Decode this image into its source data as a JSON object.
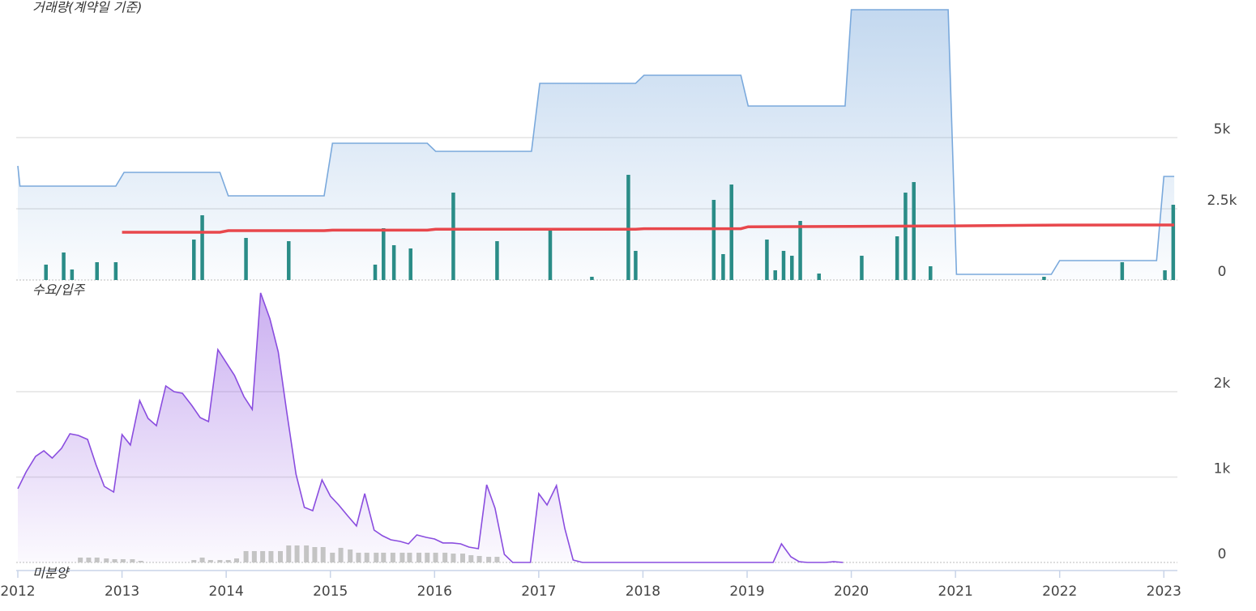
{
  "chart_data": [
    {
      "type": "combo",
      "title": "거래량(계약일 기준)",
      "xlim": [
        2012,
        2023.13
      ],
      "ylim": [
        0,
        9830
      ],
      "yticks": [
        0,
        {
          "value": 2500,
          "label": "2.5k"
        },
        {
          "value": 5000,
          "label": "5k"
        }
      ],
      "grid": true,
      "series": [
        {
          "type": "area",
          "color": "#7aa9dc",
          "x": [
            2012.0,
            2012.02,
            2012.94,
            2013.02,
            2013.94,
            2014.02,
            2014.94,
            2015.02,
            2015.93,
            2016.01,
            2016.93,
            2017.01,
            2017.93,
            2018.01,
            2018.94,
            2019.01,
            2019.94,
            2020.0,
            2020.93,
            2021.01,
            2021.92,
            2022.0,
            2022.93,
            2023.0,
            2023.1
          ],
          "values": [
            4006,
            3295,
            3295,
            3778,
            3778,
            2955,
            2955,
            4801,
            4801,
            4517,
            4517,
            6903,
            6903,
            7188,
            7188,
            6108,
            6108,
            9489,
            9489,
            199,
            199,
            682,
            682,
            3636,
            3636
          ]
        },
        {
          "type": "bar",
          "color": "#2a8c87",
          "x": [
            2012.27,
            2012.44,
            2012.52,
            2012.76,
            2012.94,
            2013.69,
            2013.77,
            2014.19,
            2014.6,
            2015.43,
            2015.51,
            2015.61,
            2015.77,
            2016.18,
            2016.6,
            2017.11,
            2017.51,
            2017.86,
            2017.93,
            2018.68,
            2018.77,
            2018.85,
            2019.19,
            2019.27,
            2019.35,
            2019.43,
            2019.51,
            2019.69,
            2020.1,
            2020.44,
            2020.52,
            2020.6,
            2020.76,
            2021.85,
            2022.6,
            2023.01,
            2023.09
          ],
          "values": [
            540,
            966,
            369,
            625,
            625,
            1420,
            2273,
            1477,
            1364,
            540,
            1818,
            1222,
            1108,
            3068,
            1364,
            1818,
            114,
            3693,
            1023,
            2813,
            909,
            3352,
            1420,
            341,
            1023,
            852,
            2074,
            227,
            852,
            1534,
            3068,
            3438,
            483,
            114,
            625,
            341,
            2642
          ]
        },
        {
          "type": "line",
          "color": "#e8474c",
          "x": [
            2013.0,
            2013.94,
            2014.02,
            2014.94,
            2015.02,
            2015.93,
            2016.01,
            2017.93,
            2018.01,
            2018.94,
            2019.01,
            2020.0,
            2021.0,
            2022.0,
            2023.1
          ],
          "values": [
            1676,
            1676,
            1733,
            1733,
            1750,
            1750,
            1780,
            1780,
            1800,
            1800,
            1870,
            1880,
            1900,
            1930,
            1932
          ]
        }
      ]
    },
    {
      "type": "combo",
      "title": "수요/입주",
      "xlim": [
        2012,
        2023.13
      ],
      "ylim": [
        0,
        3270
      ],
      "xticks": [
        2012,
        2013,
        2014,
        2015,
        2016,
        2017,
        2018,
        2019,
        2020,
        2021,
        2022,
        2023
      ],
      "yticks": [
        0,
        {
          "value": 1000,
          "label": "1k"
        },
        {
          "value": 2000,
          "label": "2k"
        }
      ],
      "grid": true,
      "series": [
        {
          "type": "area",
          "color": "#8a4ddf",
          "x": [
            2012.0,
            2012.08,
            2012.17,
            2012.25,
            2012.33,
            2012.42,
            2012.5,
            2012.58,
            2012.67,
            2012.75,
            2012.83,
            2012.92,
            2013.0,
            2013.08,
            2013.17,
            2013.25,
            2013.33,
            2013.42,
            2013.5,
            2013.58,
            2013.67,
            2013.75,
            2013.83,
            2013.92,
            2014.0,
            2014.08,
            2014.17,
            2014.25,
            2014.33,
            2014.42,
            2014.5,
            2014.58,
            2014.67,
            2014.75,
            2014.83,
            2014.92,
            2015.0,
            2015.08,
            2015.17,
            2015.25,
            2015.33,
            2015.42,
            2015.5,
            2015.58,
            2015.67,
            2015.75,
            2015.83,
            2015.92,
            2016.0,
            2016.08,
            2016.17,
            2016.25,
            2016.33,
            2016.42,
            2016.5,
            2016.58,
            2016.67,
            2016.75,
            2016.83,
            2016.92,
            2017.0,
            2017.08,
            2017.17,
            2017.25,
            2017.33,
            2017.42,
            2019.17,
            2019.25,
            2019.33,
            2019.42,
            2019.5,
            2019.58,
            2019.67,
            2019.75,
            2019.83,
            2019.92
          ],
          "values": [
            863,
            1062,
            1242,
            1308,
            1223,
            1337,
            1507,
            1488,
            1441,
            1147,
            891,
            825,
            1498,
            1375,
            1896,
            1687,
            1602,
            2067,
            2000,
            1981,
            1839,
            1697,
            1650,
            2493,
            2342,
            2190,
            1943,
            1792,
            3157,
            2853,
            2465,
            1773,
            1033,
            645,
            607,
            967,
            777,
            673,
            540,
            427,
            806,
            379,
            313,
            265,
            246,
            218,
            322,
            294,
            275,
            228,
            228,
            218,
            180,
            161,
            910,
            635,
            95,
            0,
            0,
            0,
            806,
            673,
            900,
            398,
            28,
            0,
            0,
            0,
            218,
            66,
            9,
            0,
            0,
            0,
            9,
            0
          ]
        },
        {
          "type": "bar",
          "name": "미분양",
          "color": "#c4c4c4",
          "x": [
            2012.6,
            2012.68,
            2012.76,
            2012.85,
            2012.93,
            2013.01,
            2013.1,
            2013.18,
            2013.69,
            2013.77,
            2013.85,
            2013.94,
            2014.02,
            2014.1,
            2014.19,
            2014.27,
            2014.35,
            2014.43,
            2014.52,
            2014.6,
            2014.68,
            2014.77,
            2014.85,
            2014.93,
            2015.02,
            2015.1,
            2015.19,
            2015.27,
            2015.35,
            2015.44,
            2015.51,
            2015.6,
            2015.69,
            2015.76,
            2015.85,
            2015.93,
            2016.01,
            2016.1,
            2016.18,
            2016.27,
            2016.35,
            2016.43,
            2016.52,
            2016.6
          ],
          "values": [
            57,
            57,
            57,
            47,
            38,
            38,
            38,
            19,
            28,
            57,
            28,
            28,
            28,
            47,
            133,
            133,
            133,
            133,
            133,
            199,
            199,
            199,
            180,
            180,
            114,
            171,
            152,
            114,
            114,
            114,
            114,
            114,
            114,
            114,
            114,
            114,
            114,
            114,
            104,
            104,
            85,
            76,
            66,
            66
          ]
        }
      ]
    }
  ]
}
